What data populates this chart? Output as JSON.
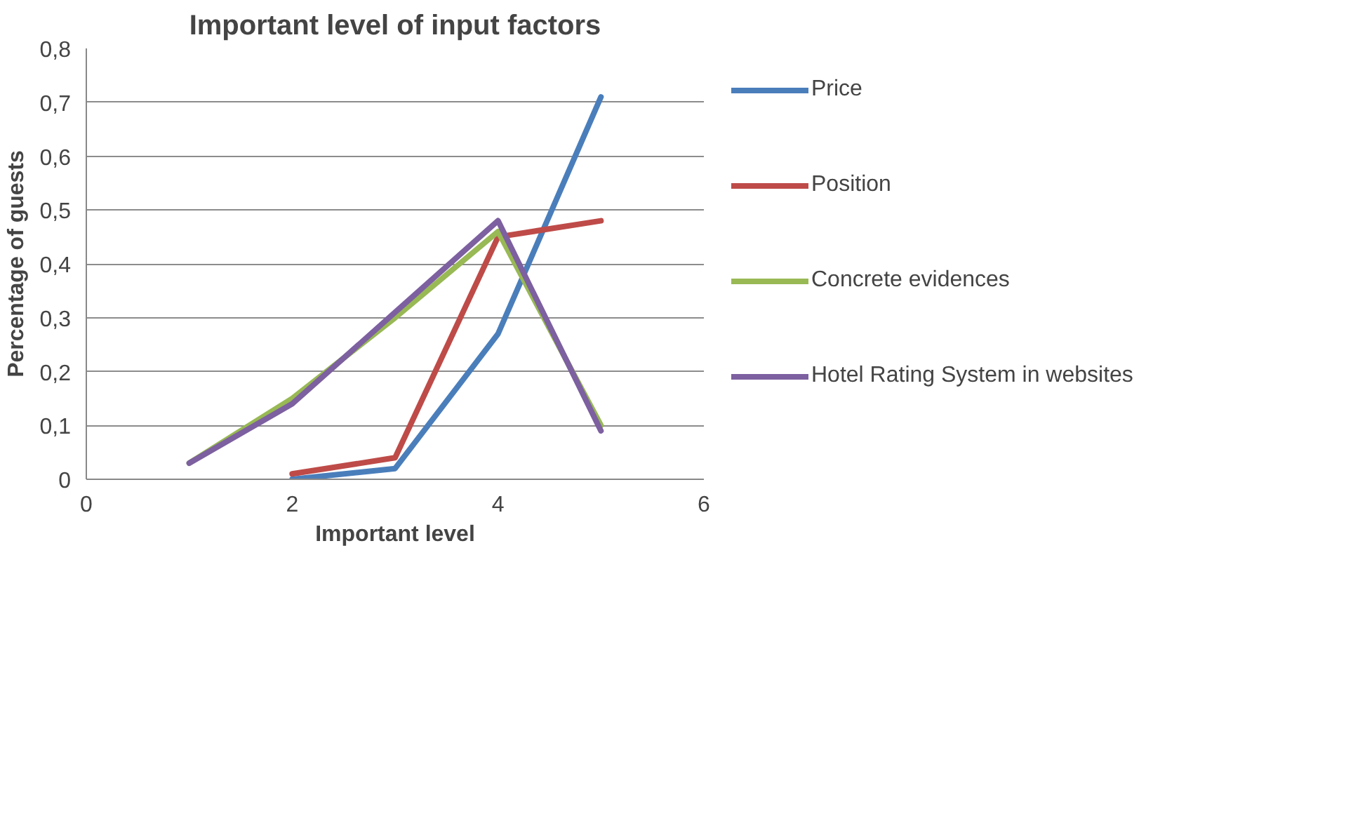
{
  "chart_data": {
    "type": "line",
    "title": "Important level of input factors",
    "xlabel": "Important level",
    "ylabel": "Percentage of guests",
    "series": [
      {
        "name": "Price",
        "color": "#4a7ebb",
        "x": [
          2,
          3,
          4,
          5
        ],
        "values": [
          0,
          0.02,
          0.27,
          0.71
        ]
      },
      {
        "name": "Position",
        "color": "#be4b48",
        "x": [
          2,
          3,
          4,
          5
        ],
        "values": [
          0.01,
          0.04,
          0.45,
          0.48
        ]
      },
      {
        "name": "Concrete evidences",
        "color": "#98b954",
        "x": [
          1,
          2,
          3,
          4,
          5
        ],
        "values": [
          0.03,
          0.15,
          0.3,
          0.46,
          0.1
        ]
      },
      {
        "name": "Hotel Rating System in websites",
        "color": "#7d60a0",
        "x": [
          1,
          2,
          3,
          4,
          5
        ],
        "values": [
          0.03,
          0.14,
          0.31,
          0.48,
          0.09
        ]
      }
    ],
    "xlim": [
      0,
      6
    ],
    "xticks": [
      0,
      2,
      4,
      6
    ],
    "ylim": [
      0,
      0.8
    ],
    "yticks": [
      0,
      {
        "value": 0.1,
        "label": "0,1"
      },
      {
        "value": 0.2,
        "label": "0,2"
      },
      {
        "value": 0.3,
        "label": "0,3"
      },
      {
        "value": 0.4,
        "label": "0,4"
      },
      {
        "value": 0.5,
        "label": "0,5"
      },
      {
        "value": 0.6,
        "label": "0,6"
      },
      {
        "value": 0.7,
        "label": "0,7"
      },
      {
        "value": 0.8,
        "label": "0,8"
      }
    ],
    "grid": "y",
    "legend": "right",
    "line_style": "solid",
    "marker": "none"
  }
}
